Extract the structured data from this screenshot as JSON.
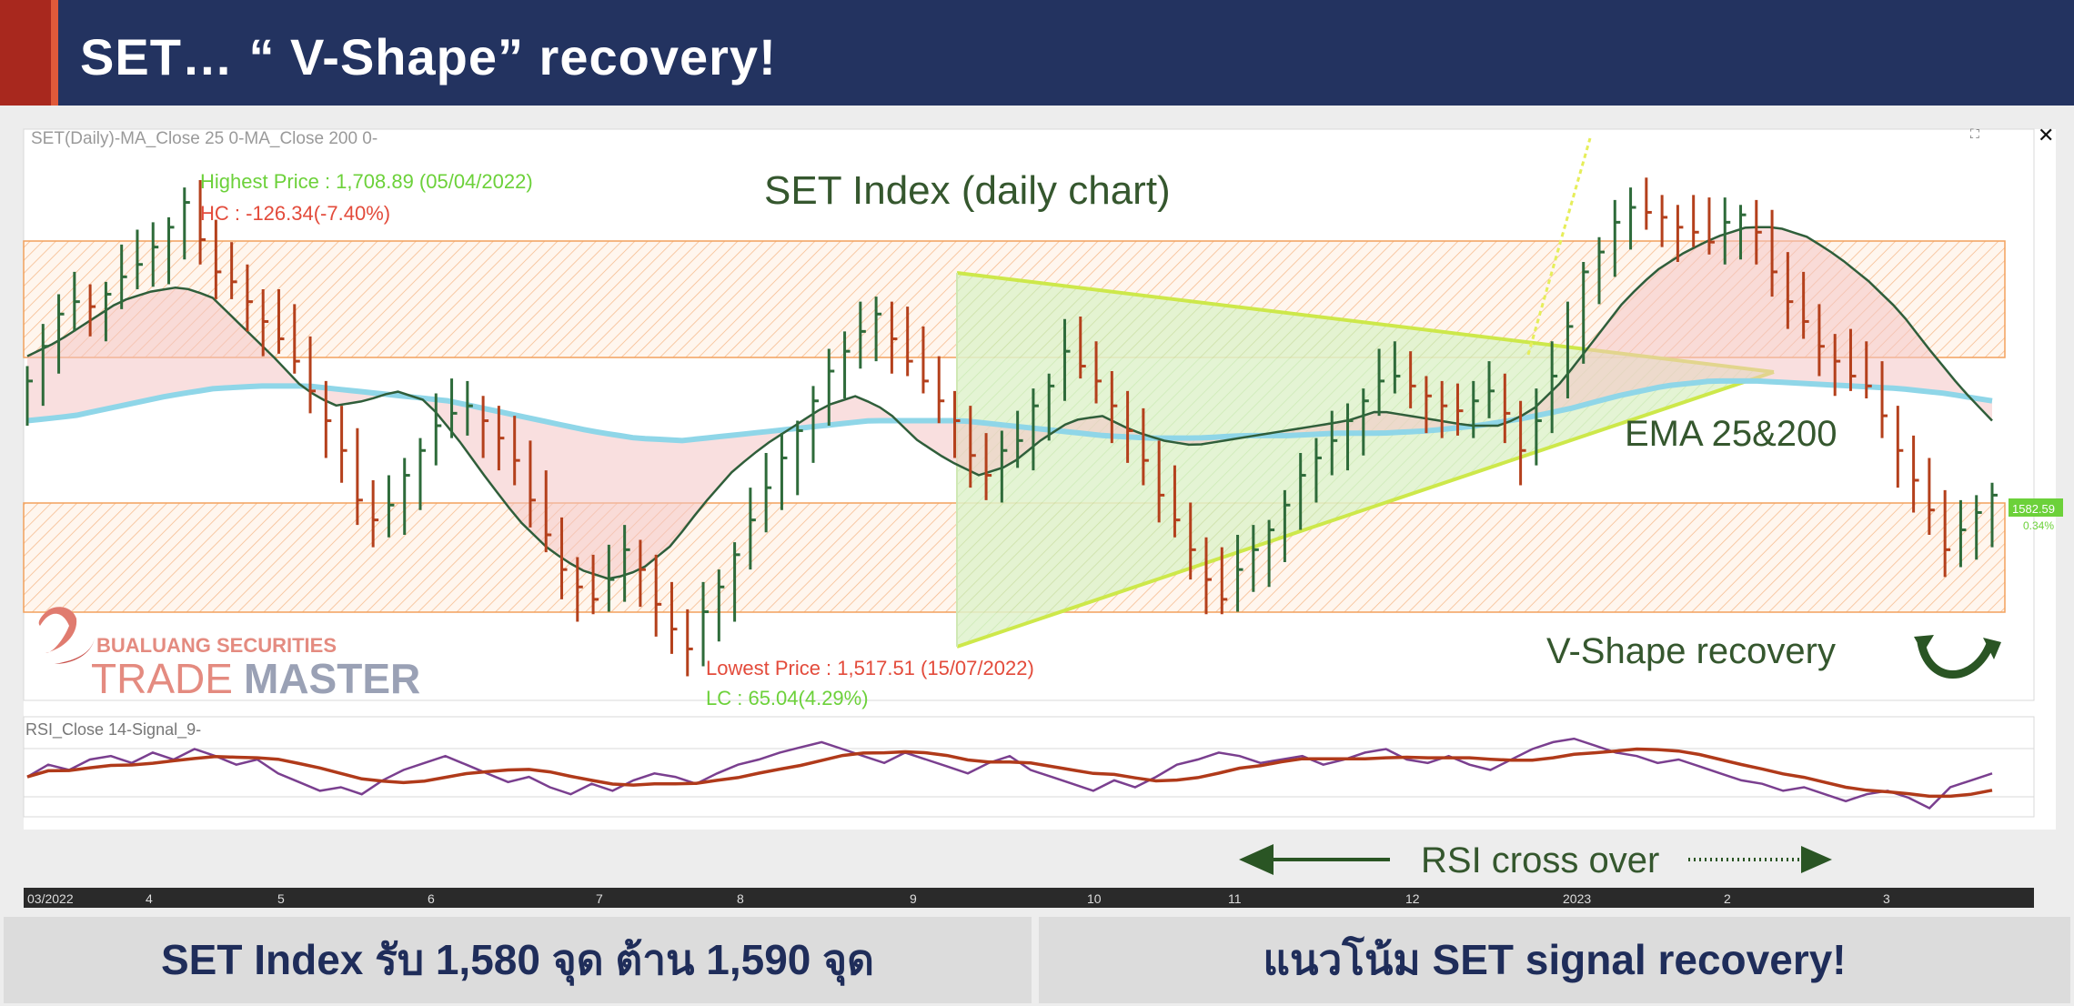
{
  "header": {
    "title": "SET… “ V-Shape” recovery!"
  },
  "chart_data": [
    {
      "type": "candlestick",
      "title": "SET Index (daily chart)",
      "indicator_label": "SET(Daily)-MA_Close 25 0-MA_Close 200 0-",
      "x_tick_labels": [
        "03/2022",
        "4",
        "5",
        "6",
        "7",
        "8",
        "9",
        "10",
        "11",
        "12",
        "2023",
        "2",
        "3"
      ],
      "annotations": {
        "highest": "Highest Price : 1,708.89 (05/04/2022)",
        "hc": "HC : -126.34(-7.40%)",
        "lowest": "Lowest Price : 1,517.51 (15/07/2022)",
        "lc": "LC : 65.04(4.29%)",
        "ema": "EMA 25&200",
        "vshape": "V-Shape recovery",
        "last_price": "1582.59",
        "last_change": "0.34%"
      },
      "close_series": [
        1628,
        1642,
        1655,
        1660,
        1658,
        1663,
        1670,
        1675,
        1682,
        1690,
        1700,
        1685,
        1672,
        1668,
        1660,
        1652,
        1645,
        1636,
        1624,
        1612,
        1600,
        1580,
        1572,
        1578,
        1590,
        1600,
        1610,
        1615,
        1618,
        1612,
        1605,
        1596,
        1580,
        1566,
        1552,
        1545,
        1540,
        1548,
        1560,
        1552,
        1538,
        1528,
        1520,
        1535,
        1545,
        1558,
        1572,
        1585,
        1597,
        1608,
        1620,
        1632,
        1640,
        1648,
        1655,
        1645,
        1636,
        1628,
        1620,
        1612,
        1598,
        1590,
        1600,
        1604,
        1618,
        1626,
        1640,
        1634,
        1628,
        1618,
        1608,
        1596,
        1582,
        1572,
        1560,
        1548,
        1540,
        1552,
        1560,
        1568,
        1578,
        1590,
        1597,
        1604,
        1612,
        1620,
        1628,
        1630,
        1626,
        1622,
        1618,
        1616,
        1620,
        1624,
        1615,
        1600,
        1612,
        1630,
        1650,
        1672,
        1680,
        1692,
        1698,
        1696,
        1694,
        1690,
        1688,
        1684,
        1692,
        1695,
        1688,
        1672,
        1660,
        1652,
        1642,
        1636,
        1630,
        1626,
        1614,
        1600,
        1588,
        1576,
        1560,
        1568,
        1575,
        1582
      ],
      "ema25_series": [
        1638,
        1644,
        1652,
        1660,
        1664,
        1666,
        1662,
        1650,
        1638,
        1625,
        1618,
        1620,
        1624,
        1620,
        1605,
        1588,
        1572,
        1560,
        1552,
        1548,
        1552,
        1562,
        1578,
        1592,
        1602,
        1610,
        1618,
        1622,
        1616,
        1604,
        1596,
        1590,
        1594,
        1604,
        1612,
        1614,
        1608,
        1604,
        1602,
        1604,
        1606,
        1608,
        1610,
        1612,
        1616,
        1614,
        1612,
        1610,
        1610,
        1616,
        1628,
        1644,
        1660,
        1672,
        1680,
        1686,
        1690,
        1690,
        1686,
        1678,
        1668,
        1656,
        1640,
        1625,
        1612
      ],
      "ema200_series": [
        1612,
        1614,
        1618,
        1622,
        1625,
        1626,
        1626,
        1624,
        1622,
        1620,
        1616,
        1612,
        1608,
        1605,
        1604,
        1606,
        1608,
        1610,
        1612,
        1612,
        1612,
        1610,
        1608,
        1606,
        1605,
        1605,
        1606,
        1606,
        1607,
        1607,
        1608,
        1610,
        1613,
        1617,
        1622,
        1626,
        1628,
        1628,
        1627,
        1626,
        1625,
        1623,
        1620
      ],
      "rsi_series": [
        48,
        55,
        52,
        58,
        60,
        56,
        62,
        58,
        64,
        60,
        55,
        58,
        50,
        45,
        40,
        42,
        38,
        46,
        52,
        56,
        60,
        55,
        50,
        45,
        48,
        42,
        38,
        44,
        40,
        46,
        50,
        48,
        44,
        50,
        55,
        58,
        62,
        65,
        68,
        64,
        60,
        56,
        62,
        58,
        54,
        50,
        56,
        60,
        52,
        48,
        44,
        40,
        46,
        42,
        48,
        55,
        58,
        62,
        60,
        56,
        58,
        60,
        55,
        58,
        62,
        64,
        58,
        56,
        60,
        55,
        52,
        58,
        64,
        68,
        70,
        66,
        62,
        60,
        56,
        58,
        54,
        50,
        46,
        44,
        40,
        42,
        38,
        34,
        38,
        40,
        36,
        30,
        42,
        46,
        50
      ]
    }
  ],
  "rsi_panel": {
    "label": "RSI_Close 14-Signal_9-",
    "note": "RSI cross over"
  },
  "logo": {
    "line1": "BUALUANG SECURITIES",
    "line2a": "TRADE",
    "line2b": "MASTER"
  },
  "footer": {
    "left": "SET Index รับ 1,580 จุด ต้าน 1,590  จุด",
    "right": "แนวโน้ม SET signal recovery!"
  },
  "colors": {
    "up": "#2e6b3a",
    "down": "#b4401c",
    "ema25": "#2f5e3a",
    "ema200": "#8fd6e8",
    "zone": "#f7a866",
    "triangle": "#cdea9b",
    "rsi": "#7a3f8f",
    "signal": "#b03a1a"
  }
}
